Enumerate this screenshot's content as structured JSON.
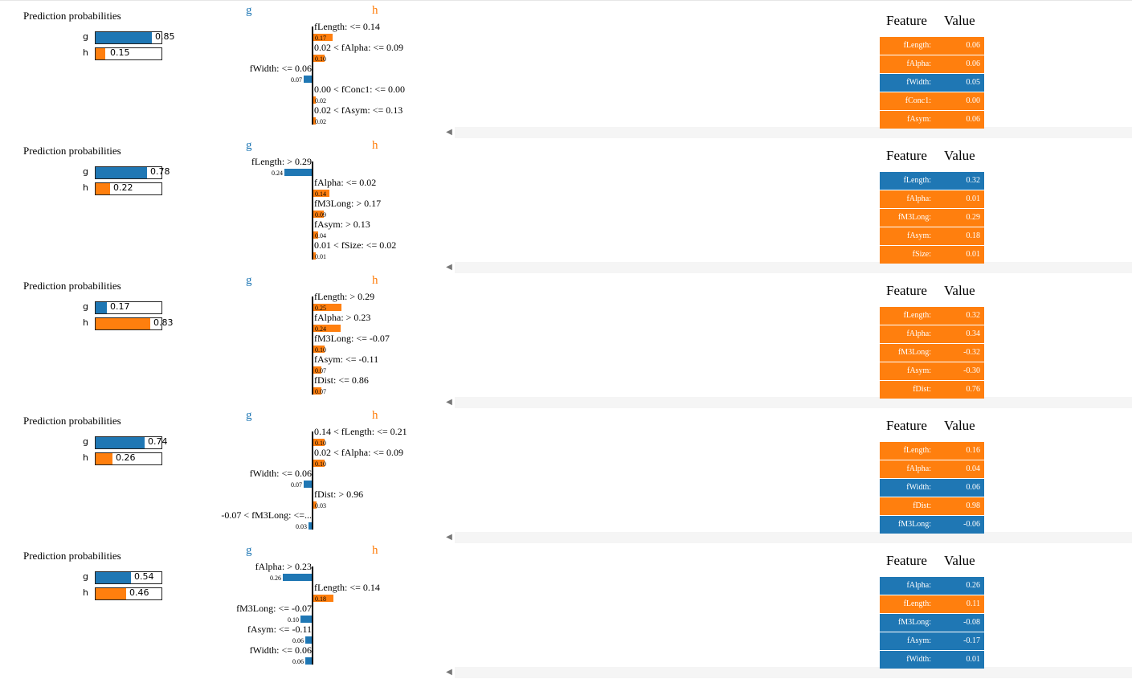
{
  "labels": {
    "prob_title": "Prediction probabilities",
    "feature_header": "Feature",
    "value_header": "Value",
    "scroll_arrow": "◀"
  },
  "colors": {
    "g": "#1f77b4",
    "h": "#ff7f0e"
  },
  "explanations": [
    {
      "class_g": "g",
      "class_h": "h",
      "probs": [
        {
          "label": "g",
          "value": 0.85,
          "text": "0.85"
        },
        {
          "label": "h",
          "value": 0.15,
          "text": "0.15"
        }
      ],
      "features": [
        {
          "condition": "fLength: <= 0.14",
          "weight": 0.17,
          "weight_text": "0.17",
          "class": "h"
        },
        {
          "condition": "0.02 < fAlpha: <= 0.09",
          "weight": 0.1,
          "weight_text": "0.10",
          "class": "h"
        },
        {
          "condition": "fWidth: <= 0.06",
          "weight": 0.07,
          "weight_text": "0.07",
          "class": "g"
        },
        {
          "condition": "0.00 < fConc1: <= 0.00",
          "weight": 0.02,
          "weight_text": "0.02",
          "class": "h"
        },
        {
          "condition": "0.02 < fAsym: <= 0.13",
          "weight": 0.02,
          "weight_text": "0.02",
          "class": "h"
        }
      ],
      "table": [
        {
          "feature": "fLength:",
          "value": "0.06",
          "class": "h"
        },
        {
          "feature": "fAlpha:",
          "value": "0.06",
          "class": "h"
        },
        {
          "feature": "fWidth:",
          "value": "0.05",
          "class": "g"
        },
        {
          "feature": "fConc1:",
          "value": "0.00",
          "class": "h"
        },
        {
          "feature": "fAsym:",
          "value": "0.06",
          "class": "h"
        }
      ]
    },
    {
      "class_g": "g",
      "class_h": "h",
      "probs": [
        {
          "label": "g",
          "value": 0.78,
          "text": "0.78"
        },
        {
          "label": "h",
          "value": 0.22,
          "text": "0.22"
        }
      ],
      "features": [
        {
          "condition": "fLength: > 0.29",
          "weight": 0.24,
          "weight_text": "0.24",
          "class": "g"
        },
        {
          "condition": "fAlpha: <= 0.02",
          "weight": 0.14,
          "weight_text": "0.14",
          "class": "h"
        },
        {
          "condition": "fM3Long: > 0.17",
          "weight": 0.09,
          "weight_text": "0.09",
          "class": "h"
        },
        {
          "condition": "fAsym: > 0.13",
          "weight": 0.04,
          "weight_text": "0.04",
          "class": "h"
        },
        {
          "condition": "0.01 < fSize: <= 0.02",
          "weight": 0.01,
          "weight_text": "0.01",
          "class": "h"
        }
      ],
      "table": [
        {
          "feature": "fLength:",
          "value": "0.32",
          "class": "g"
        },
        {
          "feature": "fAlpha:",
          "value": "0.01",
          "class": "h"
        },
        {
          "feature": "fM3Long:",
          "value": "0.29",
          "class": "h"
        },
        {
          "feature": "fAsym:",
          "value": "0.18",
          "class": "h"
        },
        {
          "feature": "fSize:",
          "value": "0.01",
          "class": "h"
        }
      ]
    },
    {
      "class_g": "g",
      "class_h": "h",
      "probs": [
        {
          "label": "g",
          "value": 0.17,
          "text": "0.17"
        },
        {
          "label": "h",
          "value": 0.83,
          "text": "0.83"
        }
      ],
      "features": [
        {
          "condition": "fLength: > 0.29",
          "weight": 0.25,
          "weight_text": "0.25",
          "class": "h"
        },
        {
          "condition": "fAlpha: > 0.23",
          "weight": 0.24,
          "weight_text": "0.24",
          "class": "h"
        },
        {
          "condition": "fM3Long: <= -0.07",
          "weight": 0.1,
          "weight_text": "0.10",
          "class": "h"
        },
        {
          "condition": "fAsym: <= -0.11",
          "weight": 0.07,
          "weight_text": "0.07",
          "class": "h"
        },
        {
          "condition": "fDist: <= 0.86",
          "weight": 0.07,
          "weight_text": "0.07",
          "class": "h"
        }
      ],
      "table": [
        {
          "feature": "fLength:",
          "value": "0.32",
          "class": "h"
        },
        {
          "feature": "fAlpha:",
          "value": "0.34",
          "class": "h"
        },
        {
          "feature": "fM3Long:",
          "value": "-0.32",
          "class": "h"
        },
        {
          "feature": "fAsym:",
          "value": "-0.30",
          "class": "h"
        },
        {
          "feature": "fDist:",
          "value": "0.76",
          "class": "h"
        }
      ]
    },
    {
      "class_g": "g",
      "class_h": "h",
      "probs": [
        {
          "label": "g",
          "value": 0.74,
          "text": "0.74"
        },
        {
          "label": "h",
          "value": 0.26,
          "text": "0.26"
        }
      ],
      "features": [
        {
          "condition": "0.14 < fLength: <= 0.21",
          "weight": 0.1,
          "weight_text": "0.10",
          "class": "h"
        },
        {
          "condition": "0.02 < fAlpha: <= 0.09",
          "weight": 0.1,
          "weight_text": "0.10",
          "class": "h"
        },
        {
          "condition": "fWidth: <= 0.06",
          "weight": 0.07,
          "weight_text": "0.07",
          "class": "g"
        },
        {
          "condition": "fDist: > 0.96",
          "weight": 0.03,
          "weight_text": "0.03",
          "class": "h"
        },
        {
          "condition": "-0.07 < fM3Long: <=...",
          "weight": 0.03,
          "weight_text": "0.03",
          "class": "g"
        }
      ],
      "table": [
        {
          "feature": "fLength:",
          "value": "0.16",
          "class": "h"
        },
        {
          "feature": "fAlpha:",
          "value": "0.04",
          "class": "h"
        },
        {
          "feature": "fWidth:",
          "value": "0.06",
          "class": "g"
        },
        {
          "feature": "fDist:",
          "value": "0.98",
          "class": "h"
        },
        {
          "feature": "fM3Long:",
          "value": "-0.06",
          "class": "g"
        }
      ]
    },
    {
      "class_g": "g",
      "class_h": "h",
      "probs": [
        {
          "label": "g",
          "value": 0.54,
          "text": "0.54"
        },
        {
          "label": "h",
          "value": 0.46,
          "text": "0.46"
        }
      ],
      "features": [
        {
          "condition": "fAlpha: > 0.23",
          "weight": 0.26,
          "weight_text": "0.26",
          "class": "g"
        },
        {
          "condition": "fLength: <= 0.14",
          "weight": 0.18,
          "weight_text": "0.18",
          "class": "h"
        },
        {
          "condition": "fM3Long: <= -0.07",
          "weight": 0.1,
          "weight_text": "0.10",
          "class": "g"
        },
        {
          "condition": "fAsym: <= -0.11",
          "weight": 0.06,
          "weight_text": "0.06",
          "class": "g"
        },
        {
          "condition": "fWidth: <= 0.06",
          "weight": 0.06,
          "weight_text": "0.06",
          "class": "g"
        }
      ],
      "table": [
        {
          "feature": "fAlpha:",
          "value": "0.26",
          "class": "g"
        },
        {
          "feature": "fLength:",
          "value": "0.11",
          "class": "h"
        },
        {
          "feature": "fM3Long:",
          "value": "-0.08",
          "class": "g"
        },
        {
          "feature": "fAsym:",
          "value": "-0.17",
          "class": "g"
        },
        {
          "feature": "fWidth:",
          "value": "0.01",
          "class": "g"
        }
      ]
    }
  ]
}
